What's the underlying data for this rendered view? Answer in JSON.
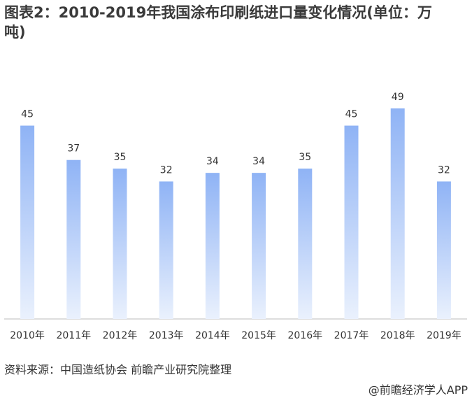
{
  "chart_data": {
    "type": "bar",
    "title": "图表2：2010-2019年我国涂布印刷纸进口量变化情况(单位：万吨)",
    "categories": [
      "2010年",
      "2011年",
      "2012年",
      "2013年",
      "2014年",
      "2015年",
      "2016年",
      "2017年",
      "2018年",
      "2019年"
    ],
    "values": [
      45,
      37,
      35,
      32,
      34,
      34,
      35,
      45,
      49,
      32
    ],
    "color": "#8fb3f5"
  },
  "source": "资料来源：中国造纸协会 前瞻产业研究院整理",
  "footer": "@前瞻经济学人APP"
}
